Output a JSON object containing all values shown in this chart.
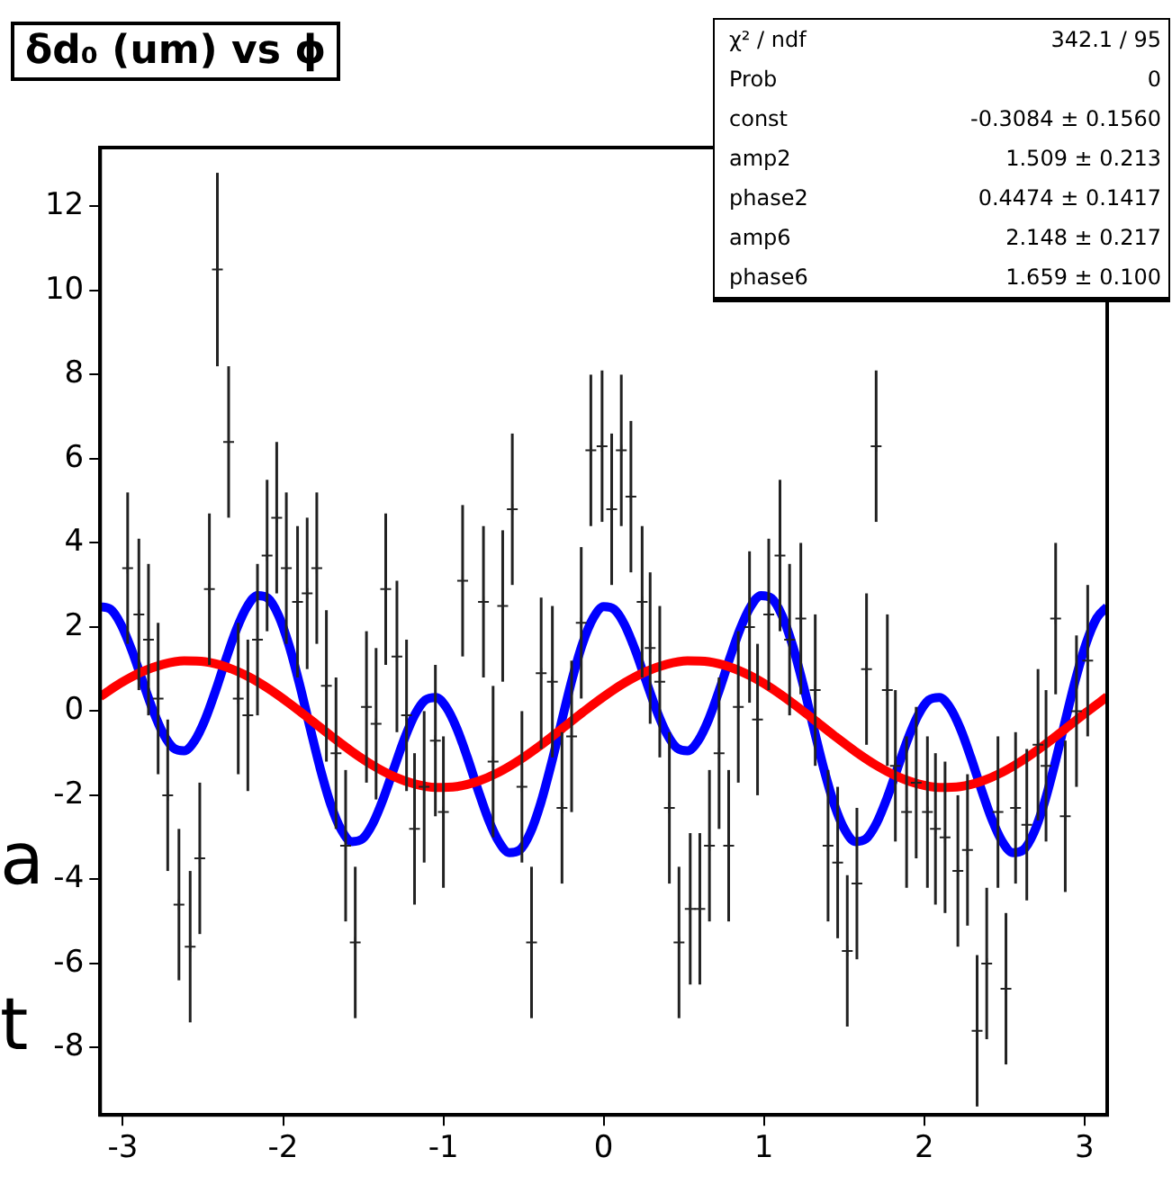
{
  "chart_data": {
    "type": "scatter",
    "title": "δd₀ (um) vs ϕ",
    "xlim": [
      -3.1416,
      3.1416
    ],
    "xticks": [
      -3,
      -2,
      -1,
      0,
      1,
      2,
      3
    ],
    "ylim": [
      -9.6,
      13.4
    ],
    "yticks": [
      -8,
      -6,
      -4,
      -2,
      0,
      2,
      4,
      6,
      8,
      10,
      12
    ],
    "grid": false,
    "legend": false,
    "annotations": [
      "χ² / ndf\t342.1 / 95",
      "Prob\t0",
      "const\t-0.3084 ± 0.1560",
      "amp2\t1.509 ± 0.213",
      "phase2\t0.4474 ± 0.1417",
      "amp6\t2.148 ± 0.217",
      "phase6\t1.659 ± 0.100",
      "a",
      "t"
    ],
    "series": [
      {
        "type": "scatter",
        "color": "#222222",
        "marker": "cross",
        "x": [
          -2.97,
          -2.9,
          -2.84,
          -2.78,
          -2.72,
          -2.65,
          -2.58,
          -2.52,
          -2.46,
          -2.41,
          -2.34,
          -2.28,
          -2.22,
          -2.16,
          -2.1,
          -2.04,
          -1.98,
          -1.91,
          -1.85,
          -1.79,
          -1.73,
          -1.67,
          -1.61,
          -1.55,
          -1.48,
          -1.42,
          -1.36,
          -1.29,
          -1.23,
          -1.18,
          -1.12,
          -1.05,
          -1.0,
          -0.88,
          -0.75,
          -0.69,
          -0.63,
          -0.57,
          -0.51,
          -0.45,
          -0.39,
          -0.32,
          -0.26,
          -0.2,
          -0.14,
          -0.08,
          -0.01,
          0.05,
          0.11,
          0.17,
          0.24,
          0.29,
          0.35,
          0.41,
          0.47,
          0.54,
          0.6,
          0.66,
          0.72,
          0.78,
          0.84,
          0.91,
          0.96,
          1.03,
          1.1,
          1.16,
          1.23,
          1.32,
          1.4,
          1.46,
          1.52,
          1.58,
          1.64,
          1.7,
          1.77,
          1.82,
          1.89,
          1.95,
          2.02,
          2.07,
          2.13,
          2.21,
          2.27,
          2.33,
          2.39,
          2.46,
          2.51,
          2.57,
          2.64,
          2.71,
          2.76,
          2.82,
          2.88,
          2.95,
          3.02
        ],
        "values": [
          3.4,
          2.3,
          1.7,
          0.3,
          -2.0,
          -4.6,
          -5.6,
          -3.5,
          2.9,
          10.5,
          6.4,
          0.3,
          -0.1,
          1.7,
          3.7,
          4.6,
          3.4,
          2.6,
          2.8,
          3.4,
          0.6,
          -1.0,
          -3.2,
          -5.5,
          0.1,
          -0.3,
          2.9,
          1.3,
          -0.1,
          -2.8,
          -1.8,
          -0.7,
          -2.4,
          3.1,
          2.6,
          -1.2,
          2.5,
          4.8,
          -1.8,
          -5.5,
          0.9,
          0.7,
          -2.3,
          -0.6,
          2.1,
          6.2,
          6.3,
          4.8,
          6.2,
          5.1,
          2.6,
          1.5,
          0.7,
          -2.3,
          -5.5,
          -4.7,
          -4.7,
          -3.2,
          -1.0,
          -3.2,
          0.1,
          2.0,
          -0.2,
          2.3,
          3.7,
          1.7,
          2.2,
          0.5,
          -3.2,
          -3.6,
          -5.7,
          -4.1,
          1.0,
          6.3,
          0.5,
          -1.3,
          -2.4,
          -1.7,
          -2.4,
          -2.8,
          -3.0,
          -3.8,
          -3.3,
          -7.6,
          -6.0,
          -2.4,
          -6.6,
          -2.3,
          -2.7,
          -0.8,
          -1.3,
          2.2,
          -2.5,
          0.0,
          1.2
        ],
        "errors": [
          1.8,
          1.8,
          1.8,
          1.8,
          1.8,
          1.8,
          1.8,
          1.8,
          1.8,
          2.3,
          1.8,
          1.8,
          1.8,
          1.8,
          1.8,
          1.8,
          1.8,
          1.8,
          1.8,
          1.8,
          1.8,
          1.8,
          1.8,
          1.8,
          1.8,
          1.8,
          1.8,
          1.8,
          1.8,
          1.8,
          1.8,
          1.8,
          1.8,
          1.8,
          1.8,
          1.8,
          1.8,
          1.8,
          1.8,
          1.8,
          1.8,
          1.8,
          1.8,
          1.8,
          1.8,
          1.8,
          1.8,
          1.8,
          1.8,
          1.8,
          1.8,
          1.8,
          1.8,
          1.8,
          1.8,
          1.8,
          1.8,
          1.8,
          1.8,
          1.8,
          1.8,
          1.8,
          1.8,
          1.8,
          1.8,
          1.8,
          1.8,
          1.8,
          1.8,
          1.8,
          1.8,
          1.8,
          1.8,
          1.8,
          1.8,
          1.8,
          1.8,
          1.8,
          1.8,
          1.8,
          1.8,
          1.8,
          1.8,
          1.8,
          1.8,
          1.8,
          1.8,
          1.8,
          1.8,
          1.8,
          1.8,
          1.8,
          1.8,
          1.8,
          1.8
        ]
      },
      {
        "type": "line",
        "color": "#ff0000",
        "marker": "none",
        "line_style": "solid",
        "x": [
          -3.1416,
          -3.0107,
          -2.8798,
          -2.7489,
          -2.618,
          -2.4871,
          -2.3562,
          -2.2253,
          -2.0944,
          -1.9635,
          -1.8326,
          -1.7017,
          -1.5708,
          -1.4399,
          -1.309,
          -1.1781,
          -1.0472,
          -0.9163,
          -0.7854,
          -0.6545,
          -0.5236,
          -0.3927,
          -0.2618,
          -0.1309,
          0,
          0.1309,
          0.2618,
          0.3927,
          0.5236,
          0.6545,
          0.7854,
          0.9163,
          1.0472,
          1.1781,
          1.309,
          1.4399,
          1.5708,
          1.7017,
          1.8326,
          1.9635,
          2.0944,
          2.2253,
          2.3562,
          2.4871,
          2.618,
          2.7489,
          2.8798,
          3.0107,
          3.1416
        ],
        "values": [
          0.344,
          0.674,
          0.937,
          1.115,
          1.196,
          1.175,
          1.052,
          0.837,
          0.544,
          0.192,
          -0.193,
          -0.587,
          -0.961,
          -1.291,
          -1.554,
          -1.732,
          -1.813,
          -1.792,
          -1.669,
          -1.454,
          -1.16,
          -0.809,
          -0.423,
          -0.03,
          0.344,
          0.674,
          0.937,
          1.115,
          1.196,
          1.175,
          1.052,
          0.837,
          0.544,
          0.192,
          -0.193,
          -0.587,
          -0.961,
          -1.291,
          -1.554,
          -1.732,
          -1.813,
          -1.792,
          -1.669,
          -1.454,
          -1.16,
          -0.809,
          -0.423,
          -0.03,
          0.344
        ]
      },
      {
        "type": "line",
        "color": "#0000ff",
        "marker": "none",
        "line_style": "solid",
        "x": [
          -3.1416,
          -3.0761,
          -3.0107,
          -2.9452,
          -2.8798,
          -2.8143,
          -2.7489,
          -2.6834,
          -2.618,
          -2.5525,
          -2.4871,
          -2.4216,
          -2.3562,
          -2.2907,
          -2.2253,
          -2.1598,
          -2.0944,
          -2.0289,
          -1.9635,
          -1.898,
          -1.8326,
          -1.7671,
          -1.7017,
          -1.6362,
          -1.5708,
          -1.5053,
          -1.4399,
          -1.3744,
          -1.309,
          -1.2435,
          -1.1781,
          -1.1126,
          -1.0472,
          -0.9817,
          -0.9163,
          -0.8508,
          -0.7854,
          -0.7199,
          -0.6545,
          -0.589,
          -0.5236,
          -0.4581,
          -0.3927,
          -0.3272,
          -0.2618,
          -0.1963,
          -0.1309,
          -0.0654,
          0,
          0.0654,
          0.1309,
          0.1963,
          0.2618,
          0.3272,
          0.3927,
          0.4581,
          0.5236,
          0.589,
          0.6545,
          0.7199,
          0.7854,
          0.8508,
          0.9163,
          0.9817,
          1.0472,
          1.1126,
          1.1781,
          1.2435,
          1.309,
          1.3744,
          1.4399,
          1.5053,
          1.5708,
          1.6362,
          1.7017,
          1.7671,
          1.8326,
          1.898,
          1.9635,
          2.0289,
          2.0944,
          2.1598,
          2.2253,
          2.2907,
          2.3562,
          2.4216,
          2.4871,
          2.5525,
          2.618,
          2.6834,
          2.7489,
          2.8143,
          2.8798,
          2.9452,
          3.0107,
          3.0761,
          3.1416
        ],
        "values": [
          2.484,
          2.42,
          2.053,
          1.459,
          0.748,
          0.045,
          -0.531,
          -0.881,
          -0.944,
          -0.706,
          -0.204,
          0.482,
          1.241,
          1.948,
          2.483,
          2.748,
          2.684,
          2.278,
          1.571,
          0.646,
          -0.382,
          -1.384,
          -2.233,
          -2.827,
          -3.101,
          -3.037,
          -2.67,
          -2.076,
          -1.365,
          -0.661,
          -0.086,
          0.264,
          0.327,
          0.089,
          -0.413,
          -1.098,
          -1.858,
          -2.565,
          -3.1,
          -3.365,
          -3.3,
          -2.894,
          -2.188,
          -1.263,
          -0.234,
          0.767,
          1.616,
          2.21,
          2.484,
          2.42,
          2.053,
          1.459,
          0.748,
          0.045,
          -0.531,
          -0.881,
          -0.944,
          -0.706,
          -0.204,
          0.482,
          1.241,
          1.948,
          2.483,
          2.748,
          2.684,
          2.278,
          1.571,
          0.646,
          -0.382,
          -1.384,
          -2.233,
          -2.827,
          -3.101,
          -3.037,
          -2.67,
          -2.076,
          -1.365,
          -0.661,
          -0.086,
          0.264,
          0.327,
          0.089,
          -0.413,
          -1.098,
          -1.858,
          -2.565,
          -3.1,
          -3.365,
          -3.3,
          -2.894,
          -2.188,
          -1.263,
          -0.234,
          0.767,
          1.616,
          2.21,
          2.484
        ]
      }
    ]
  }
}
